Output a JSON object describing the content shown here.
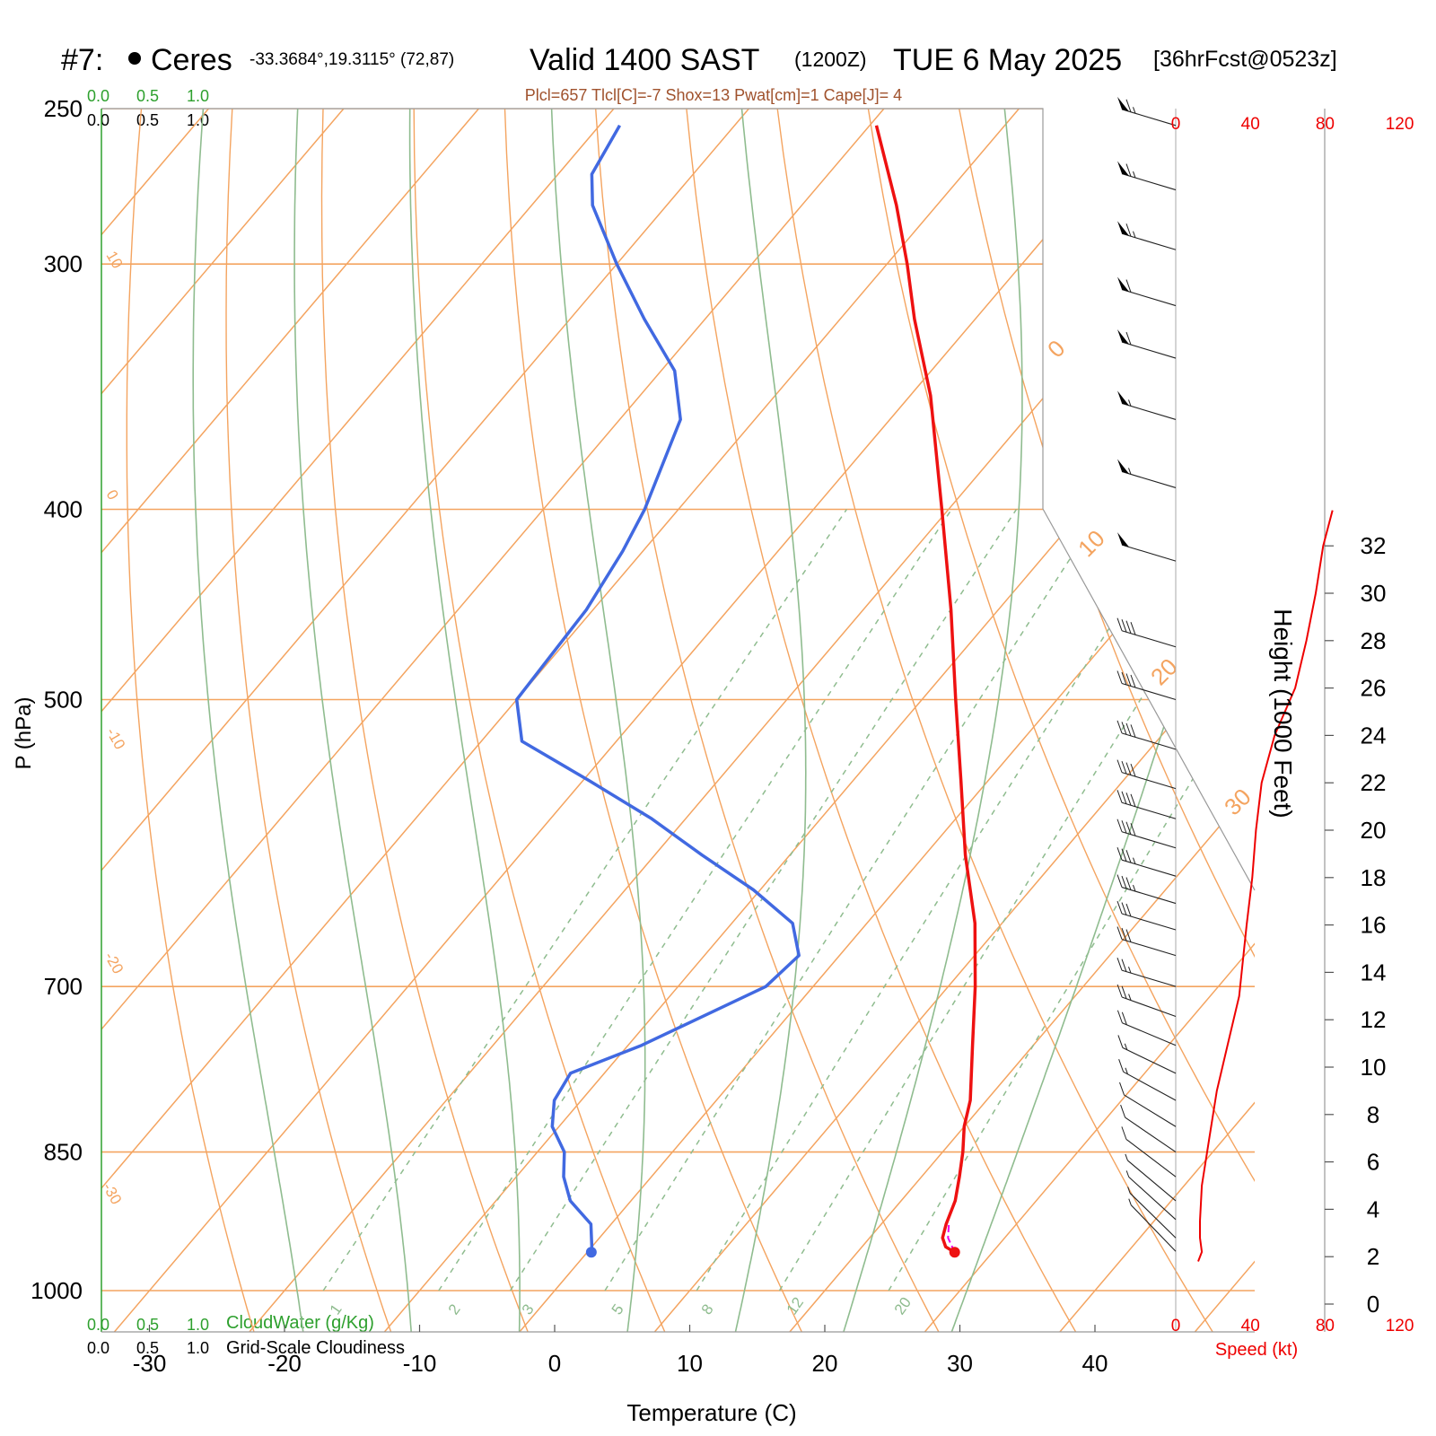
{
  "header": {
    "station_num": "#7:",
    "station_name": "Ceres",
    "coords": "-33.3684°,19.3115° (72,87)",
    "valid_label": "Valid 1400 SAST",
    "utc": "(1200Z)",
    "date": "TUE 6 May 2025",
    "forecast": "[36hrFcst@0523z]",
    "indices": "Plcl=657 Tlcl[C]=-7 Shox=13 Pwat[cm]=1 Cape[J]= 4"
  },
  "legend": {
    "cloud_scale_top_green": [
      "0.0",
      "0.5",
      "1.0"
    ],
    "cloud_scale_top_black": [
      "0.0",
      "0.5",
      "1.0"
    ],
    "cloud_scale_bottom_green": [
      "0.0",
      "0.5",
      "1.0"
    ],
    "cloud_scale_bottom_black": [
      "0.0",
      "0.5",
      "1.0"
    ],
    "cloudwater_label": "CloudWater (g/Kg)",
    "cloudiness_label": "Grid-Scale Cloudiness"
  },
  "colors": {
    "temperature": "#ee1111",
    "dewpoint": "#4169e1",
    "isotherm": "#f4a460",
    "dry_adiabat": "#8fbc8f",
    "mixing_ratio": "#8fbc8f",
    "wind_speed": "#ee0000",
    "parcel": "#ee00ee"
  },
  "chart_data": {
    "type": "skew-t",
    "xlabel": "Temperature (C)",
    "ylabel": "P (hPa)",
    "right_ylabel": "Height (1000 Feet)",
    "speed_label": "Speed (kt)",
    "x_ticks": [
      "-30",
      "-20",
      "-10",
      "0",
      "10",
      "20",
      "30",
      "40"
    ],
    "pressure_ticks": [
      "250",
      "300",
      "400",
      "500",
      "700",
      "850",
      "1000"
    ],
    "height_ticks": [
      "0",
      "2",
      "4",
      "6",
      "8",
      "10",
      "12",
      "14",
      "16",
      "18",
      "20",
      "22",
      "24",
      "26",
      "28",
      "30",
      "32"
    ],
    "speed_ticks": [
      "0",
      "40",
      "80",
      "120"
    ],
    "isotherm_labels_left": [
      "10",
      "0",
      "-10",
      "-20",
      "-30"
    ],
    "isotherm_labels_right": [
      "0",
      "10",
      "20",
      "30"
    ],
    "mixing_ratio_labels": [
      "1",
      "2",
      "3",
      "5",
      "8",
      "12",
      "20"
    ],
    "temperature_profile": [
      {
        "p": 956,
        "t": 27.2
      },
      {
        "p": 950,
        "t": 26.2
      },
      {
        "p": 940,
        "t": 25.4
      },
      {
        "p": 925,
        "t": 24.8
      },
      {
        "p": 900,
        "t": 24.0
      },
      {
        "p": 875,
        "t": 22.8
      },
      {
        "p": 850,
        "t": 21.5
      },
      {
        "p": 825,
        "t": 20.0
      },
      {
        "p": 800,
        "t": 18.8
      },
      {
        "p": 750,
        "t": 15.5
      },
      {
        "p": 700,
        "t": 12.0
      },
      {
        "p": 650,
        "t": 8.0
      },
      {
        "p": 600,
        "t": 3.0
      },
      {
        "p": 550,
        "t": -2.0
      },
      {
        "p": 500,
        "t": -7.5
      },
      {
        "p": 450,
        "t": -13.5
      },
      {
        "p": 400,
        "t": -20.5
      },
      {
        "p": 350,
        "t": -28.5
      },
      {
        "p": 320,
        "t": -34.5
      },
      {
        "p": 300,
        "t": -38.5
      },
      {
        "p": 280,
        "t": -43.0
      },
      {
        "p": 255,
        "t": -49.5
      }
    ],
    "dewpoint_profile": [
      {
        "p": 956,
        "t": 0.3
      },
      {
        "p": 950,
        "t": 0.0
      },
      {
        "p": 925,
        "t": -1.5
      },
      {
        "p": 900,
        "t": -4.5
      },
      {
        "p": 875,
        "t": -6.5
      },
      {
        "p": 850,
        "t": -8.0
      },
      {
        "p": 825,
        "t": -10.5
      },
      {
        "p": 800,
        "t": -12.0
      },
      {
        "p": 775,
        "t": -12.5
      },
      {
        "p": 750,
        "t": -9.0
      },
      {
        "p": 700,
        "t": -3.5
      },
      {
        "p": 675,
        "t": -3.0
      },
      {
        "p": 650,
        "t": -5.5
      },
      {
        "p": 625,
        "t": -10.5
      },
      {
        "p": 600,
        "t": -16.5
      },
      {
        "p": 575,
        "t": -22.5
      },
      {
        "p": 550,
        "t": -29.5
      },
      {
        "p": 525,
        "t": -37.0
      },
      {
        "p": 500,
        "t": -40.0
      },
      {
        "p": 450,
        "t": -40.5
      },
      {
        "p": 420,
        "t": -41.5
      },
      {
        "p": 400,
        "t": -42.5
      },
      {
        "p": 360,
        "t": -45.5
      },
      {
        "p": 340,
        "t": -49.0
      },
      {
        "p": 320,
        "t": -54.5
      },
      {
        "p": 300,
        "t": -60.0
      },
      {
        "p": 280,
        "t": -65.5
      },
      {
        "p": 270,
        "t": -67.5
      },
      {
        "p": 255,
        "t": -68.5
      }
    ],
    "parcel_profile": [
      {
        "p": 956,
        "t": 27.2
      },
      {
        "p": 940,
        "t": 25.8
      },
      {
        "p": 925,
        "t": 25.0
      }
    ],
    "wind_speed_profile": [
      {
        "h": 1.8,
        "s": 12
      },
      {
        "h": 2.2,
        "s": 14
      },
      {
        "h": 2.8,
        "s": 13
      },
      {
        "h": 3.5,
        "s": 13
      },
      {
        "h": 5.0,
        "s": 14
      },
      {
        "h": 7.0,
        "s": 18
      },
      {
        "h": 9.0,
        "s": 22
      },
      {
        "h": 11.0,
        "s": 28
      },
      {
        "h": 13.0,
        "s": 34
      },
      {
        "h": 16.0,
        "s": 38
      },
      {
        "h": 18.0,
        "s": 41
      },
      {
        "h": 20.0,
        "s": 43
      },
      {
        "h": 22.0,
        "s": 46
      },
      {
        "h": 24.0,
        "s": 53
      },
      {
        "h": 26.0,
        "s": 64
      },
      {
        "h": 28.0,
        "s": 70
      },
      {
        "h": 30.0,
        "s": 75
      },
      {
        "h": 32.0,
        "s": 79
      },
      {
        "h": 33.5,
        "s": 84
      }
    ],
    "wind_barbs": [
      {
        "p": 255,
        "s": 65
      },
      {
        "p": 275,
        "s": 65
      },
      {
        "p": 295,
        "s": 65
      },
      {
        "p": 315,
        "s": 60
      },
      {
        "p": 335,
        "s": 60
      },
      {
        "p": 360,
        "s": 55
      },
      {
        "p": 390,
        "s": 55
      },
      {
        "p": 425,
        "s": 50
      },
      {
        "p": 470,
        "s": 40
      },
      {
        "p": 500,
        "s": 40
      },
      {
        "p": 530,
        "s": 40
      },
      {
        "p": 555,
        "s": 40
      },
      {
        "p": 575,
        "s": 40
      },
      {
        "p": 595,
        "s": 40
      },
      {
        "p": 615,
        "s": 35
      },
      {
        "p": 635,
        "s": 35
      },
      {
        "p": 655,
        "s": 30
      },
      {
        "p": 675,
        "s": 30
      },
      {
        "p": 700,
        "s": 25
      },
      {
        "p": 725,
        "s": 25
      },
      {
        "p": 750,
        "s": 20
      },
      {
        "p": 775,
        "s": 15
      },
      {
        "p": 800,
        "s": 15
      },
      {
        "p": 825,
        "s": 10
      },
      {
        "p": 850,
        "s": 10
      },
      {
        "p": 875,
        "s": 10
      },
      {
        "p": 900,
        "s": 5
      },
      {
        "p": 920,
        "s": 5
      },
      {
        "p": 940,
        "s": 5
      },
      {
        "p": 955,
        "s": 5
      }
    ]
  }
}
